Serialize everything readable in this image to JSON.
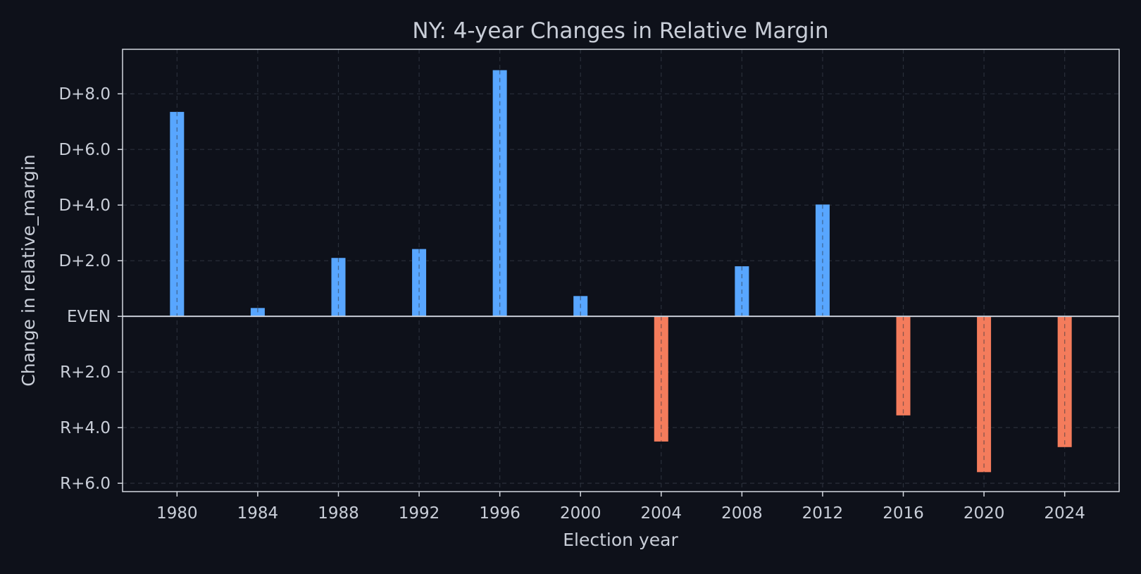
{
  "chart_data": {
    "type": "bar",
    "title": "NY: 4-year Changes in Relative Margin",
    "xlabel": "Election year",
    "ylabel": "Change in relative_margin",
    "categories": [
      "1980",
      "1984",
      "1988",
      "1992",
      "1996",
      "2000",
      "2004",
      "2008",
      "2012",
      "2016",
      "2020",
      "2024"
    ],
    "x": [
      1980,
      1984,
      1988,
      1992,
      1996,
      2000,
      2004,
      2008,
      2012,
      2016,
      2020,
      2024
    ],
    "values": [
      7.35,
      0.3,
      2.1,
      2.42,
      8.85,
      0.73,
      -4.5,
      1.8,
      4.02,
      -3.56,
      -5.6,
      -4.7
    ],
    "xlim": [
      1977.3,
      2026.7
    ],
    "ylim": [
      -6.3,
      9.6
    ],
    "y_ticks": [
      8,
      6,
      4,
      2,
      0,
      -2,
      -4,
      -6
    ],
    "y_tick_labels": [
      "D+8.0",
      "D+6.0",
      "D+4.0",
      "D+2.0",
      "EVEN",
      "R+2.0",
      "R+4.0",
      "R+6.0"
    ],
    "positive_color": "#58a6ff",
    "negative_color": "#f47c5c",
    "background_color": "#0e111a",
    "text_color": "#c9ced8",
    "grid": true,
    "legend": "none"
  }
}
